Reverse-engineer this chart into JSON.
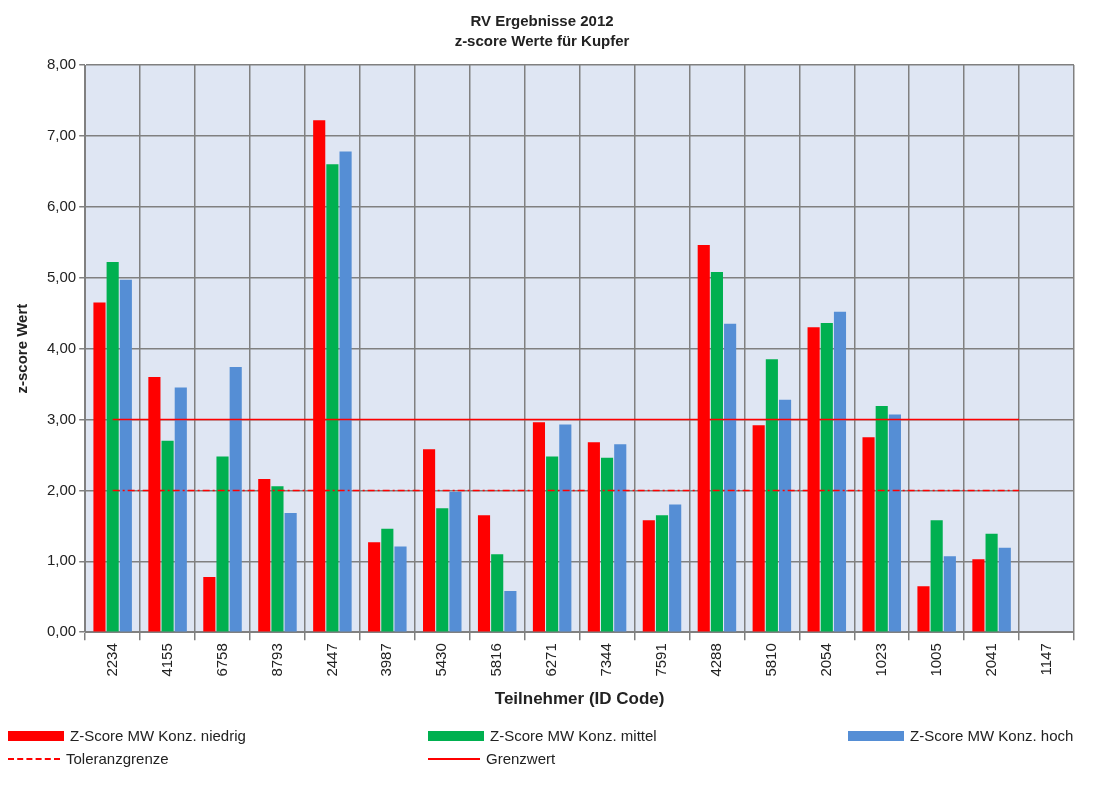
{
  "chart_data": {
    "type": "bar",
    "title": "RV Ergebnisse 2012",
    "subtitle": "z-score Werte für Kupfer",
    "xlabel": "Teilnehmer (ID Code)",
    "ylabel": "z-score Wert",
    "categories": [
      "2234",
      "4155",
      "6758",
      "8793",
      "2447",
      "3987",
      "5430",
      "5816",
      "6271",
      "7344",
      "7591",
      "4288",
      "5810",
      "2054",
      "1023",
      "1005",
      "2041",
      "1147"
    ],
    "series": [
      {
        "name": "Z-Score MW Konz. niedrig",
        "color": "#ff0000",
        "values": [
          4.65,
          3.6,
          0.78,
          2.16,
          7.22,
          1.27,
          2.58,
          1.65,
          2.96,
          2.68,
          1.58,
          5.46,
          2.92,
          4.3,
          2.75,
          0.65,
          1.03,
          null
        ]
      },
      {
        "name": "Z-Score MW Konz. mittel",
        "color": "#00b050",
        "values": [
          5.22,
          2.7,
          2.48,
          2.06,
          6.6,
          1.46,
          1.75,
          1.1,
          2.48,
          2.46,
          1.65,
          5.08,
          3.85,
          4.36,
          3.19,
          1.58,
          1.39,
          null
        ]
      },
      {
        "name": "Z-Score MW Konz. hoch",
        "color": "#558ed5",
        "values": [
          4.97,
          3.45,
          3.74,
          1.68,
          6.78,
          1.21,
          1.98,
          0.58,
          2.93,
          2.65,
          1.8,
          4.35,
          3.28,
          4.52,
          3.07,
          1.07,
          1.19,
          null
        ]
      }
    ],
    "ylim": [
      0,
      8
    ],
    "yticks": [
      {
        "value": 0,
        "label": "0,00"
      },
      {
        "value": 1,
        "label": "1,00"
      },
      {
        "value": 2,
        "label": "2,00"
      },
      {
        "value": 3,
        "label": "3,00"
      },
      {
        "value": 4,
        "label": "4,00"
      },
      {
        "value": 5,
        "label": "5,00"
      },
      {
        "value": 6,
        "label": "6,00"
      },
      {
        "value": 7,
        "label": "7,00"
      },
      {
        "value": 8,
        "label": "8,00"
      }
    ],
    "ref_lines": [
      {
        "axis": "y",
        "value": 2,
        "label": "Toleranzgrenze",
        "color": "#ff0000",
        "line_style": "dashdot"
      },
      {
        "axis": "y",
        "value": 3,
        "label": "Grenzwert",
        "color": "#ff0000",
        "line_style": "solid"
      }
    ],
    "grid": true,
    "legend": "bottom"
  }
}
